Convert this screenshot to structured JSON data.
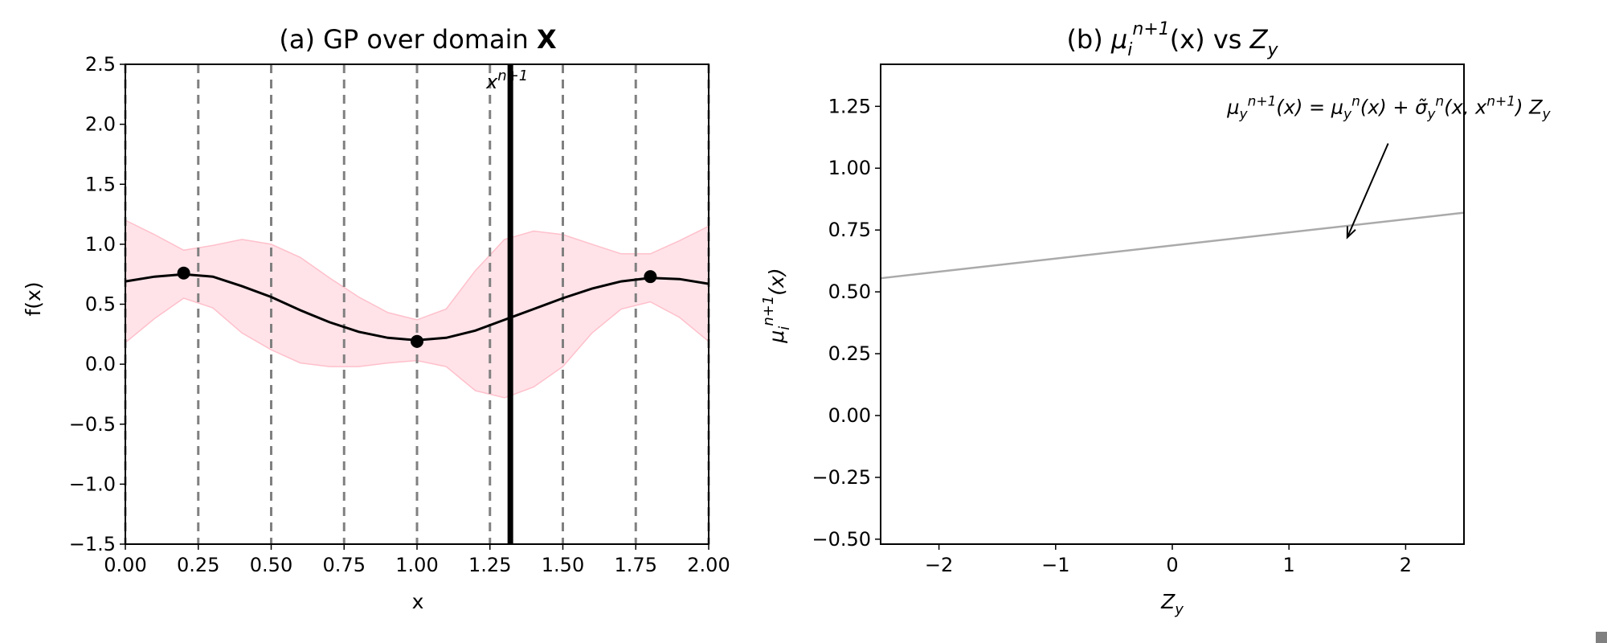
{
  "chart_data": [
    {
      "type": "line",
      "title_prefix": "(a) GP over domain ",
      "title_bold": "X",
      "xlabel": "x",
      "ylabel": "f(x)",
      "xlim": [
        0,
        2
      ],
      "ylim": [
        -1.5,
        2.5
      ],
      "xticks": [
        0,
        0.25,
        0.5,
        0.75,
        1.0,
        1.25,
        1.5,
        1.75,
        2.0
      ],
      "xtick_labels": [
        "0.00",
        "0.25",
        "0.50",
        "0.75",
        "1.00",
        "1.25",
        "1.50",
        "1.75",
        "2.00"
      ],
      "yticks": [
        -1.5,
        -1.0,
        -0.5,
        0.0,
        0.5,
        1.0,
        1.5,
        2.0,
        2.5
      ],
      "ytick_labels": [
        "−1.5",
        "−1.0",
        "−0.5",
        "0.0",
        "0.5",
        "1.0",
        "1.5",
        "2.0",
        "2.5"
      ],
      "grid": false,
      "mean_curve": {
        "x": [
          0.0,
          0.1,
          0.2,
          0.3,
          0.4,
          0.5,
          0.6,
          0.7,
          0.8,
          0.9,
          1.0,
          1.1,
          1.2,
          1.3,
          1.4,
          1.5,
          1.6,
          1.7,
          1.8,
          1.9,
          2.0
        ],
        "y": [
          0.69,
          0.73,
          0.75,
          0.73,
          0.65,
          0.56,
          0.45,
          0.35,
          0.27,
          0.22,
          0.2,
          0.22,
          0.28,
          0.37,
          0.46,
          0.55,
          0.63,
          0.69,
          0.72,
          0.71,
          0.67
        ],
        "color": "#000000"
      },
      "confidence_band": {
        "x": [
          0.0,
          0.1,
          0.2,
          0.3,
          0.4,
          0.5,
          0.6,
          0.7,
          0.8,
          0.9,
          1.0,
          1.1,
          1.2,
          1.3,
          1.4,
          1.5,
          1.6,
          1.7,
          1.8,
          1.9,
          2.0
        ],
        "upper": [
          1.2,
          1.08,
          0.95,
          0.99,
          1.04,
          1.0,
          0.89,
          0.72,
          0.56,
          0.43,
          0.37,
          0.46,
          0.78,
          1.04,
          1.11,
          1.08,
          1.0,
          0.92,
          0.92,
          1.03,
          1.15
        ],
        "lower": [
          0.18,
          0.38,
          0.55,
          0.47,
          0.26,
          0.12,
          0.01,
          -0.02,
          -0.02,
          0.01,
          0.03,
          -0.02,
          -0.22,
          -0.28,
          -0.19,
          -0.02,
          0.26,
          0.46,
          0.52,
          0.39,
          0.19
        ],
        "color": "#ffc0cb"
      },
      "observations": {
        "x": [
          0.2,
          1.0,
          1.8
        ],
        "y": [
          0.76,
          0.19,
          0.73
        ],
        "color": "#000000"
      },
      "dashed_vlines": {
        "x": [
          0.0,
          0.25,
          0.5,
          0.75,
          1.0,
          1.25,
          1.5,
          1.75,
          2.0
        ],
        "color": "#808080"
      },
      "next_point": {
        "x": 1.32,
        "label_base": "x",
        "label_sup": "n+1",
        "color": "#000000"
      }
    },
    {
      "type": "line",
      "title_prefix": "(b) ",
      "title_mu": "μ",
      "title_sub": "i",
      "title_sup": "n+1",
      "title_mid": "(x) vs ",
      "title_z": "Z",
      "title_zsub": "y",
      "xlabel": "Z",
      "xlabel_sub": "y",
      "ylabel_mu": "μ",
      "ylabel_sub": "i",
      "ylabel_sup": "n+1",
      "ylabel_rest": "(x)",
      "xlim": [
        -2.5,
        2.5
      ],
      "ylim": [
        -0.52,
        1.42
      ],
      "xticks": [
        -2,
        -1,
        0,
        1,
        2
      ],
      "xtick_labels": [
        "−2",
        "−1",
        "0",
        "1",
        "2"
      ],
      "yticks": [
        -0.5,
        -0.25,
        0.0,
        0.25,
        0.5,
        0.75,
        1.0,
        1.25
      ],
      "ytick_labels": [
        "−0.50",
        "−0.25",
        "0.00",
        "0.25",
        "0.50",
        "0.75",
        "1.00",
        "1.25"
      ],
      "grid": false,
      "line": {
        "x": [
          -2.5,
          2.5
        ],
        "y": [
          0.555,
          0.82
        ],
        "color": "#aaaaaa"
      },
      "annotation": {
        "text_x": 0.47,
        "text_y": 1.22,
        "arrow_from": [
          1.85,
          1.1
        ],
        "arrow_to": [
          1.5,
          0.72
        ],
        "parts": [
          {
            "t": "μ",
            "style": "base"
          },
          {
            "t": "y",
            "style": "sub"
          },
          {
            "t": "n+1",
            "style": "sup"
          },
          {
            "t": "(x) = ",
            "style": "base"
          },
          {
            "t": "μ",
            "style": "base"
          },
          {
            "t": "y",
            "style": "sub"
          },
          {
            "t": "n",
            "style": "sup"
          },
          {
            "t": "(x)  +  ",
            "style": "base"
          },
          {
            "t": "σ̃",
            "style": "base"
          },
          {
            "t": "y",
            "style": "sub"
          },
          {
            "t": "n",
            "style": "sup"
          },
          {
            "t": "(x, x",
            "style": "base"
          },
          {
            "t": "n+1",
            "style": "sup"
          },
          {
            "t": ") Z",
            "style": "base"
          },
          {
            "t": "y",
            "style": "sub"
          }
        ]
      }
    }
  ]
}
